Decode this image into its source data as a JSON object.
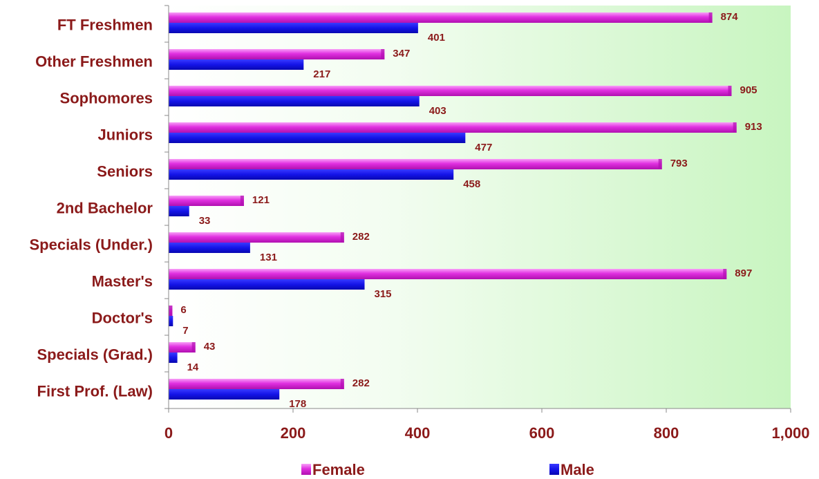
{
  "chart_data": {
    "type": "bar",
    "orientation": "horizontal",
    "categories": [
      "FT Freshmen",
      "Other Freshmen",
      "Sophomores",
      "Juniors",
      "Seniors",
      "2nd Bachelor",
      "Specials (Under.)",
      "Master's",
      "Doctor's",
      "Specials (Grad.)",
      "First Prof. (Law)"
    ],
    "series": [
      {
        "name": "Female",
        "color": "#e020e0",
        "values": [
          874,
          347,
          905,
          913,
          793,
          121,
          282,
          897,
          6,
          43,
          282
        ]
      },
      {
        "name": "Male",
        "color": "#1010e0",
        "values": [
          401,
          217,
          403,
          477,
          458,
          33,
          131,
          315,
          7,
          14,
          178
        ]
      }
    ],
    "xlim": [
      0,
      1000
    ],
    "xticks": [
      "0",
      "200",
      "400",
      "600",
      "800",
      "1,000"
    ],
    "title": "",
    "xlabel": "",
    "ylabel": "",
    "legend_position": "bottom",
    "grid": false
  }
}
